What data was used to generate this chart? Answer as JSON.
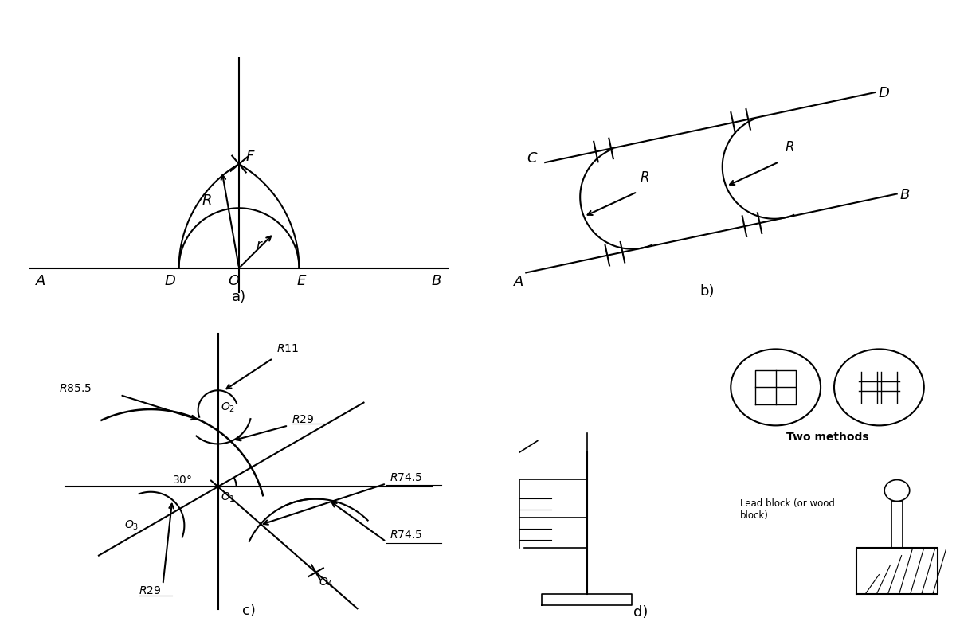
{
  "bg_color": "#ffffff",
  "line_color": "#000000",
  "panel_a_label": "a)",
  "panel_b_label": "b)",
  "panel_c_label": "c)",
  "panel_d_label": "d)",
  "label_fontsize": 13,
  "italic_fontsize": 12,
  "annotation_fontsize": 10
}
